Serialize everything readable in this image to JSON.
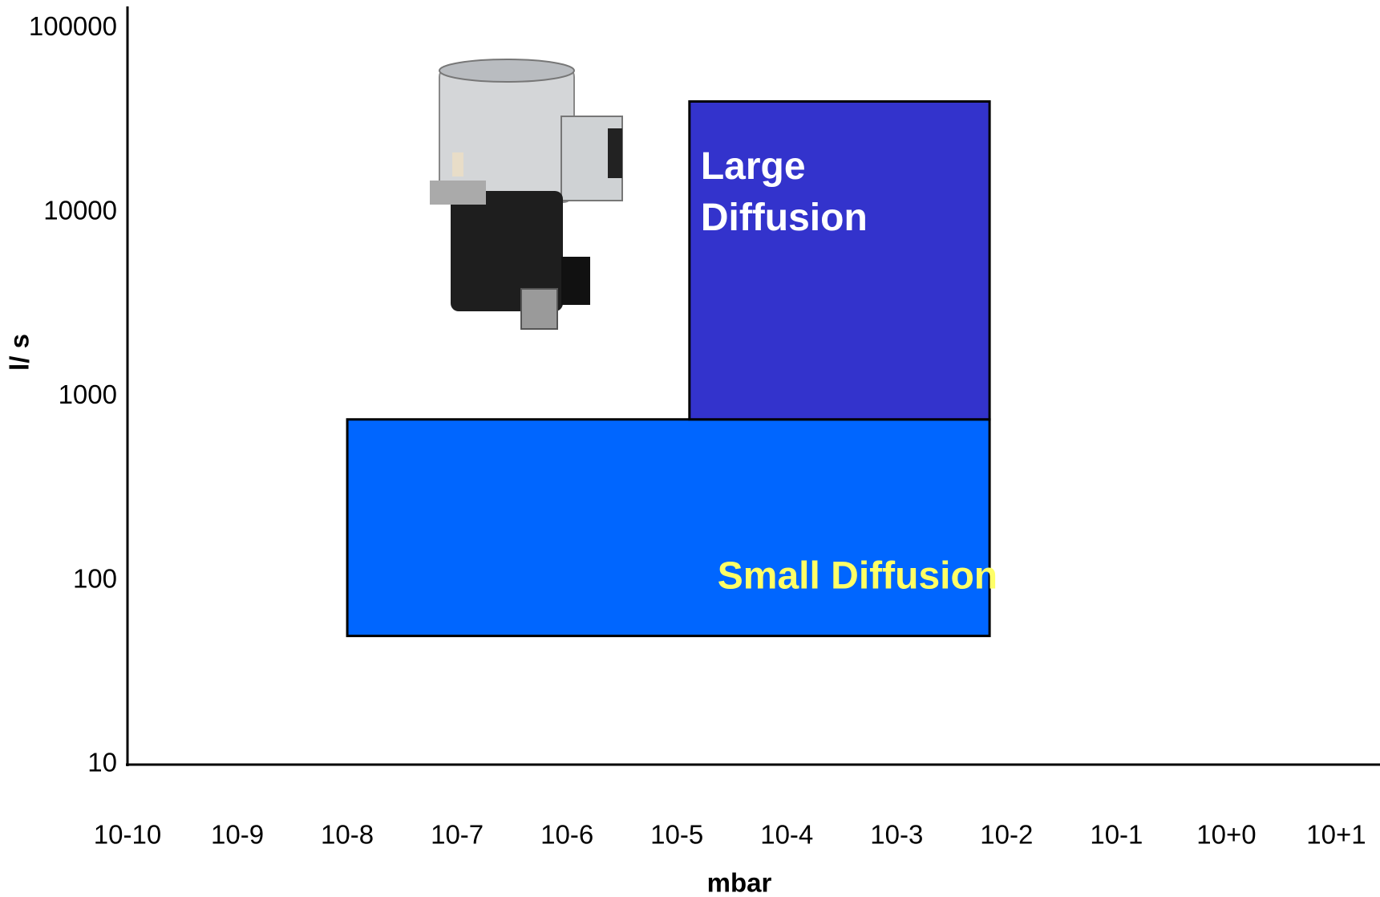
{
  "chart_data": {
    "type": "range",
    "x_label": "mbar",
    "y_label": "l/ s",
    "x_log": true,
    "y_log": true,
    "xlim": [
      1e-10,
      25
    ],
    "ylim": [
      10,
      130000
    ],
    "xticks": [
      {
        "value": 1e-10,
        "label": "10-10"
      },
      {
        "value": 1e-09,
        "label": "10-9"
      },
      {
        "value": 1e-08,
        "label": "10-8"
      },
      {
        "value": 1e-07,
        "label": "10-7"
      },
      {
        "value": 1e-06,
        "label": "10-6"
      },
      {
        "value": 1e-05,
        "label": "10-5"
      },
      {
        "value": 0.0001,
        "label": "10-4"
      },
      {
        "value": 0.001,
        "label": "10-3"
      },
      {
        "value": 0.01,
        "label": "10-2"
      },
      {
        "value": 0.1,
        "label": "10-1"
      },
      {
        "value": 1,
        "label": "10+0"
      },
      {
        "value": 10,
        "label": "10+1"
      }
    ],
    "yticks": [
      10,
      100,
      1000,
      10000,
      100000
    ],
    "series": [
      {
        "name": "Small Diffusion",
        "color": "#0066ff",
        "label_color": "#ffff66",
        "x": [
          1e-08,
          0.007
        ],
        "y": [
          50,
          750
        ]
      },
      {
        "name": "Large Diffusion",
        "color": "#3333cc",
        "label_color": "#ffffff",
        "x": [
          1.3e-05,
          0.007
        ],
        "y": [
          750,
          40000
        ]
      }
    ]
  }
}
